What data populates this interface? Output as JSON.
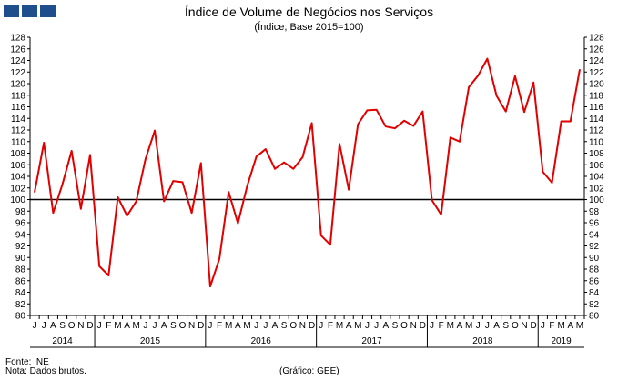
{
  "header": {
    "title": "Índice de Volume de Negócios nos Serviços",
    "subtitle": "(Índice, Base 2015=100)",
    "logo_color": "#1f4e8c"
  },
  "footer": {
    "source": "Fonte: INE",
    "note": "Nota: Dados brutos.",
    "credit": "(Gráfico: GEE)"
  },
  "chart_data": {
    "type": "line",
    "title": "Índice de Volume de Negócios nos Serviços",
    "subtitle": "(Índice, Base 2015=100)",
    "ylim": [
      80,
      128
    ],
    "ytick_step": 2,
    "y_axes": "left-and-right",
    "reference_line": 100,
    "line_color": "#e00000",
    "reference_color": "#000000",
    "month_labels": [
      "J",
      "J",
      "A",
      "S",
      "O",
      "N",
      "D",
      "J",
      "F",
      "M",
      "A",
      "M",
      "J",
      "J",
      "A",
      "S",
      "O",
      "N",
      "D",
      "J",
      "F",
      "M",
      "A",
      "M",
      "J",
      "J",
      "A",
      "S",
      "O",
      "N",
      "D",
      "J",
      "F",
      "M",
      "A",
      "M",
      "J",
      "J",
      "A",
      "S",
      "O",
      "N",
      "D",
      "J",
      "F",
      "M",
      "A",
      "M",
      "J",
      "J",
      "A",
      "S",
      "O",
      "N",
      "D",
      "J",
      "F",
      "M",
      "A",
      "M"
    ],
    "year_groups": [
      {
        "label": "2014",
        "months": 7
      },
      {
        "label": "2015",
        "months": 12
      },
      {
        "label": "2016",
        "months": 12
      },
      {
        "label": "2017",
        "months": 12
      },
      {
        "label": "2018",
        "months": 12
      },
      {
        "label": "2019",
        "months": 5
      }
    ],
    "series": [
      {
        "values": [
          101.3,
          109.8,
          97.7,
          102.6,
          108.4,
          98.4,
          107.7,
          88.5,
          86.9,
          100.4,
          97.2,
          99.7,
          107.0,
          111.9,
          99.7,
          103.2,
          103.0,
          97.7,
          106.3,
          85.0,
          89.8,
          101.3,
          95.9,
          102.3,
          107.4,
          108.7,
          105.3,
          106.4,
          105.3,
          107.3,
          113.2,
          93.8,
          92.2,
          109.6,
          101.7,
          113.0,
          115.4,
          115.5,
          112.6,
          112.3,
          113.6,
          112.7,
          115.2,
          99.9,
          97.4,
          110.7,
          110.0,
          119.4,
          121.4,
          124.3,
          117.9,
          115.2,
          121.3,
          115.1,
          120.2,
          104.8,
          102.9,
          113.5,
          113.5,
          122.4
        ]
      }
    ]
  }
}
